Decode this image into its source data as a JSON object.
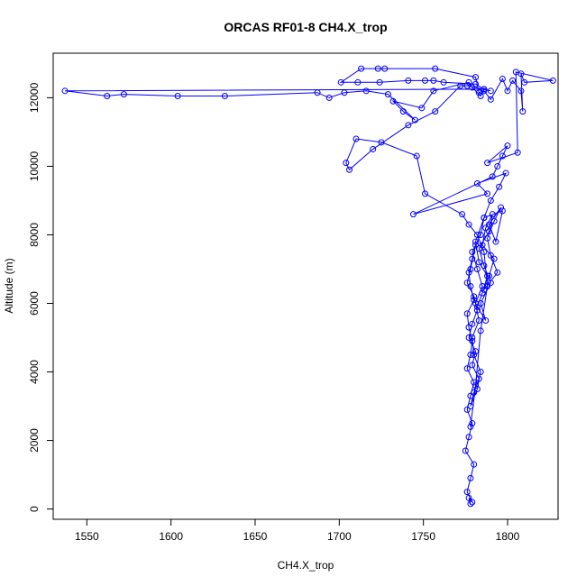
{
  "chart_data": {
    "type": "scatter",
    "title": "ORCAS RF01-8 CH4.X_trop",
    "xlabel": "CH4.X_trop",
    "ylabel": "Altitude (m)",
    "xlim": [
      1530,
      1830
    ],
    "ylim": [
      -300,
      13300
    ],
    "xticks": [
      1550,
      1600,
      1650,
      1700,
      1750,
      1800
    ],
    "yticks": [
      0,
      2000,
      4000,
      6000,
      8000,
      10000,
      12000
    ],
    "grid": false,
    "legend": "none",
    "series": [
      {
        "style": "line+points",
        "color": "#0000ff",
        "x": [
          1778,
          1777,
          1779,
          1776,
          1778,
          1780,
          1775,
          1777,
          1779,
          1776,
          1778,
          1780,
          1776,
          1778,
          1779,
          1777,
          1776,
          1780,
          1778,
          1777,
          1779,
          1781,
          1778,
          1776,
          1780,
          1782,
          1779,
          1777,
          1781,
          1779,
          1783,
          1780,
          1778,
          1782,
          1784,
          1780,
          1779,
          1783,
          1781,
          1785,
          1782,
          1779,
          1784,
          1786,
          1781,
          1783,
          1788,
          1785,
          1782,
          1787,
          1784,
          1790,
          1786,
          1783,
          1789,
          1791,
          1787,
          1785,
          1792,
          1789,
          1786,
          1794,
          1790,
          1788,
          1792,
          1796,
          1789,
          1793,
          1797,
          1786,
          1790,
          1795,
          1799,
          1782,
          1788,
          1744,
          1791,
          1794,
          1797,
          1800,
          1788,
          1806,
          1805,
          1827,
          1810,
          1808,
          1809,
          1808,
          1803,
          1800,
          1797,
          1790,
          1786,
          1783,
          1781,
          1757,
          1727,
          1723,
          1713,
          1701,
          1711,
          1724,
          1741,
          1751,
          1756,
          1762,
          1781,
          1786,
          1784,
          1779,
          1777,
          1756,
          1749,
          1732,
          1738,
          1745,
          1729,
          1716,
          1703,
          1694,
          1687,
          1632,
          1604,
          1572,
          1562,
          1537,
          1786,
          1790,
          1776,
          1772,
          1757,
          1741,
          1720,
          1706,
          1704,
          1710,
          1725,
          1746,
          1751,
          1773,
          1777,
          1782,
          1786,
          1788,
          1784,
          1781,
          1778
        ],
        "y": [
          150,
          320,
          200,
          500,
          900,
          1300,
          1700,
          2100,
          2500,
          2900,
          3300,
          3700,
          4100,
          4500,
          4900,
          5300,
          5700,
          6100,
          6500,
          6900,
          7300,
          7700,
          7000,
          6600,
          6200,
          5800,
          5400,
          5000,
          4600,
          4200,
          3800,
          3400,
          3000,
          3500,
          4000,
          4500,
          5000,
          5500,
          6000,
          6500,
          7000,
          7500,
          8000,
          8500,
          7800,
          7200,
          6800,
          6300,
          5900,
          5500,
          6000,
          6600,
          7100,
          7600,
          8100,
          8600,
          8200,
          7700,
          7300,
          6800,
          6400,
          6900,
          7400,
          7900,
          8400,
          8800,
          8300,
          7800,
          8700,
          8500,
          9000,
          9400,
          9800,
          9500,
          9200,
          8600,
          9700,
          10000,
          10300,
          10600,
          10100,
          10400,
          12750,
          12500,
          12450,
          12700,
          11600,
          12200,
          12500,
          12200,
          12550,
          11950,
          12200,
          12150,
          12600,
          12850,
          12850,
          12850,
          12850,
          12450,
          12450,
          12450,
          12500,
          12500,
          12500,
          12450,
          12400,
          12250,
          12050,
          12300,
          12450,
          12200,
          11700,
          11900,
          11600,
          11350,
          12100,
          12200,
          12150,
          12000,
          12150,
          12050,
          12050,
          12100,
          12050,
          12200,
          12250,
          12200,
          12350,
          12350,
          11600,
          11200,
          10500,
          9900,
          10100,
          10800,
          10700,
          10300,
          9200,
          8600,
          8300,
          8000,
          7500,
          6500,
          5200,
          3600,
          2400
        ]
      }
    ]
  }
}
